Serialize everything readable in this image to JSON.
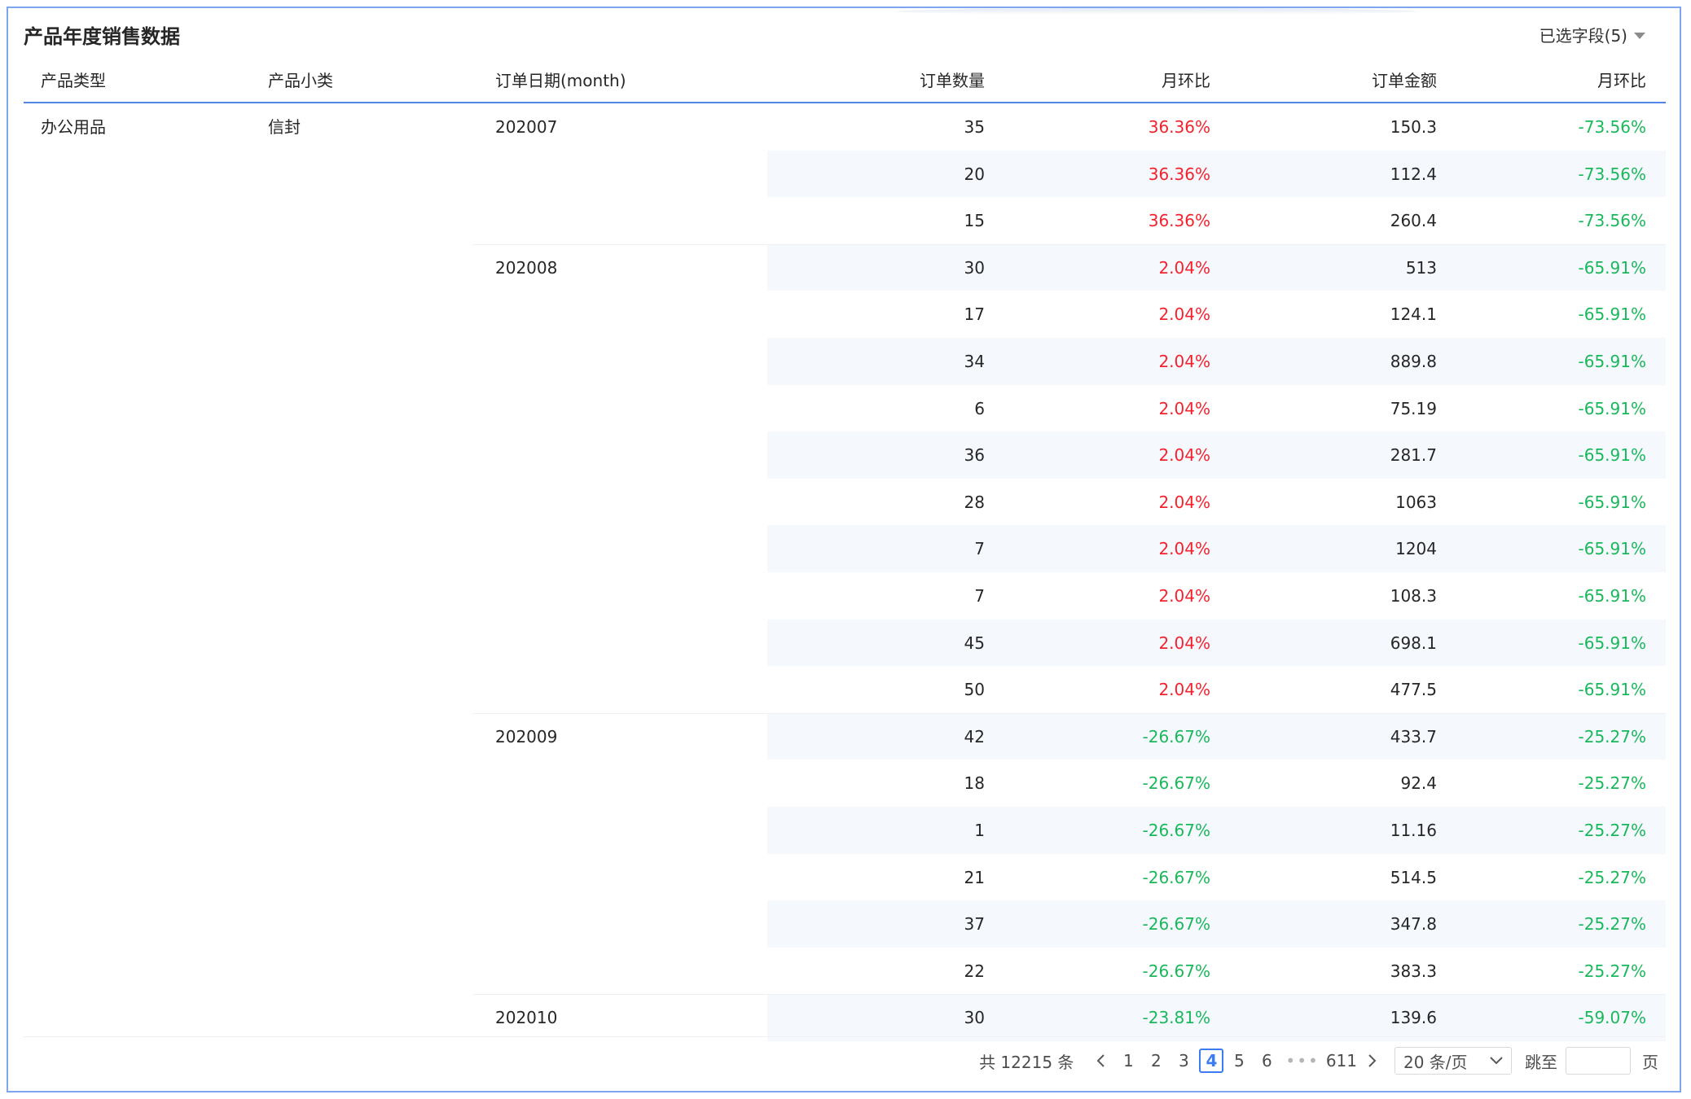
{
  "title": "产品年度销售数据",
  "field_selector": {
    "label": "已选字段(5)",
    "icon": "caret-down-icon"
  },
  "columns": [
    "产品类型",
    "产品小类",
    "订单日期(month)",
    "订单数量",
    "月环比",
    "订单金额",
    "月环比"
  ],
  "rows": [
    {
      "type": "办公用品",
      "subtype": "信封",
      "month": "202007",
      "qty": "35",
      "qty_mom": "36.36%",
      "qty_mom_color": "red",
      "amount": "150.3",
      "amount_mom": "-73.56%",
      "amount_mom_color": "green"
    },
    {
      "type": "",
      "subtype": "",
      "month": "",
      "qty": "20",
      "qty_mom": "36.36%",
      "qty_mom_color": "red",
      "amount": "112.4",
      "amount_mom": "-73.56%",
      "amount_mom_color": "green"
    },
    {
      "type": "",
      "subtype": "",
      "month": "",
      "qty": "15",
      "qty_mom": "36.36%",
      "qty_mom_color": "red",
      "amount": "260.4",
      "amount_mom": "-73.56%",
      "amount_mom_color": "green"
    },
    {
      "type": "",
      "subtype": "",
      "month": "202008",
      "qty": "30",
      "qty_mom": "2.04%",
      "qty_mom_color": "red",
      "amount": "513",
      "amount_mom": "-65.91%",
      "amount_mom_color": "green"
    },
    {
      "type": "",
      "subtype": "",
      "month": "",
      "qty": "17",
      "qty_mom": "2.04%",
      "qty_mom_color": "red",
      "amount": "124.1",
      "amount_mom": "-65.91%",
      "amount_mom_color": "green"
    },
    {
      "type": "",
      "subtype": "",
      "month": "",
      "qty": "34",
      "qty_mom": "2.04%",
      "qty_mom_color": "red",
      "amount": "889.8",
      "amount_mom": "-65.91%",
      "amount_mom_color": "green"
    },
    {
      "type": "",
      "subtype": "",
      "month": "",
      "qty": "6",
      "qty_mom": "2.04%",
      "qty_mom_color": "red",
      "amount": "75.19",
      "amount_mom": "-65.91%",
      "amount_mom_color": "green"
    },
    {
      "type": "",
      "subtype": "",
      "month": "",
      "qty": "36",
      "qty_mom": "2.04%",
      "qty_mom_color": "red",
      "amount": "281.7",
      "amount_mom": "-65.91%",
      "amount_mom_color": "green"
    },
    {
      "type": "",
      "subtype": "",
      "month": "",
      "qty": "28",
      "qty_mom": "2.04%",
      "qty_mom_color": "red",
      "amount": "1063",
      "amount_mom": "-65.91%",
      "amount_mom_color": "green"
    },
    {
      "type": "",
      "subtype": "",
      "month": "",
      "qty": "7",
      "qty_mom": "2.04%",
      "qty_mom_color": "red",
      "amount": "1204",
      "amount_mom": "-65.91%",
      "amount_mom_color": "green"
    },
    {
      "type": "",
      "subtype": "",
      "month": "",
      "qty": "7",
      "qty_mom": "2.04%",
      "qty_mom_color": "red",
      "amount": "108.3",
      "amount_mom": "-65.91%",
      "amount_mom_color": "green"
    },
    {
      "type": "",
      "subtype": "",
      "month": "",
      "qty": "45",
      "qty_mom": "2.04%",
      "qty_mom_color": "red",
      "amount": "698.1",
      "amount_mom": "-65.91%",
      "amount_mom_color": "green"
    },
    {
      "type": "",
      "subtype": "",
      "month": "",
      "qty": "50",
      "qty_mom": "2.04%",
      "qty_mom_color": "red",
      "amount": "477.5",
      "amount_mom": "-65.91%",
      "amount_mom_color": "green"
    },
    {
      "type": "",
      "subtype": "",
      "month": "202009",
      "qty": "42",
      "qty_mom": "-26.67%",
      "qty_mom_color": "green",
      "amount": "433.7",
      "amount_mom": "-25.27%",
      "amount_mom_color": "green"
    },
    {
      "type": "",
      "subtype": "",
      "month": "",
      "qty": "18",
      "qty_mom": "-26.67%",
      "qty_mom_color": "green",
      "amount": "92.4",
      "amount_mom": "-25.27%",
      "amount_mom_color": "green"
    },
    {
      "type": "",
      "subtype": "",
      "month": "",
      "qty": "1",
      "qty_mom": "-26.67%",
      "qty_mom_color": "green",
      "amount": "11.16",
      "amount_mom": "-25.27%",
      "amount_mom_color": "green"
    },
    {
      "type": "",
      "subtype": "",
      "month": "",
      "qty": "21",
      "qty_mom": "-26.67%",
      "qty_mom_color": "green",
      "amount": "514.5",
      "amount_mom": "-25.27%",
      "amount_mom_color": "green"
    },
    {
      "type": "",
      "subtype": "",
      "month": "",
      "qty": "37",
      "qty_mom": "-26.67%",
      "qty_mom_color": "green",
      "amount": "347.8",
      "amount_mom": "-25.27%",
      "amount_mom_color": "green"
    },
    {
      "type": "",
      "subtype": "",
      "month": "",
      "qty": "22",
      "qty_mom": "-26.67%",
      "qty_mom_color": "green",
      "amount": "383.3",
      "amount_mom": "-25.27%",
      "amount_mom_color": "green"
    },
    {
      "type": "",
      "subtype": "",
      "month": "202010",
      "qty": "30",
      "qty_mom": "-23.81%",
      "qty_mom_color": "green",
      "amount": "139.6",
      "amount_mom": "-59.07%",
      "amount_mom_color": "green"
    }
  ],
  "colors": {
    "positive": "#f5222d",
    "negative": "#19b85b",
    "accent": "#3c7cf0",
    "stripe": "#f5f8fd"
  },
  "pagination": {
    "total_label": "共 12215 条",
    "pages": [
      "1",
      "2",
      "3",
      "4",
      "5",
      "6"
    ],
    "current_page": "4",
    "ellipsis": "•••",
    "last_page": "611",
    "page_size": "20 条/页",
    "jump_label": "跳至",
    "jump_value": "",
    "page_suffix": "页"
  }
}
